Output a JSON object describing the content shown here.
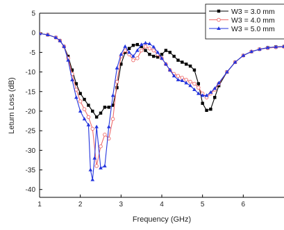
{
  "chart_data": {
    "type": "line",
    "xlabel": "Frequency (GHz)",
    "ylabel": "Leturn Loss (dB)",
    "xlim": [
      1,
      7
    ],
    "ylim": [
      -42,
      5
    ],
    "xticks": [
      1,
      2,
      3,
      4,
      5,
      6
    ],
    "yticks": [
      5,
      0,
      -5,
      -10,
      -15,
      -20,
      -25,
      -30,
      -35,
      -40
    ],
    "legend_position": "top-right",
    "series": [
      {
        "name": "W3 = 3.0 mm",
        "color": "#000000",
        "marker": "square",
        "x": [
          1.0,
          1.2,
          1.4,
          1.5,
          1.6,
          1.7,
          1.8,
          1.9,
          2.0,
          2.1,
          2.2,
          2.3,
          2.4,
          2.5,
          2.6,
          2.7,
          2.8,
          2.9,
          3.0,
          3.1,
          3.2,
          3.3,
          3.4,
          3.5,
          3.6,
          3.7,
          3.8,
          3.9,
          4.0,
          4.1,
          4.2,
          4.3,
          4.4,
          4.5,
          4.6,
          4.7,
          4.8,
          4.9,
          5.0,
          5.1,
          5.2,
          5.3,
          5.4,
          5.6,
          5.8,
          6.0,
          6.2,
          6.4,
          6.6,
          6.8,
          7.0
        ],
        "y": [
          -0.2,
          -0.5,
          -1.2,
          -2.0,
          -3.5,
          -6.0,
          -9.5,
          -13.0,
          -15.5,
          -17.0,
          -18.5,
          -20.0,
          -21.5,
          -20.5,
          -19.0,
          -19.0,
          -18.5,
          -14.0,
          -8.0,
          -5.0,
          -4.0,
          -3.2,
          -3.0,
          -3.5,
          -4.5,
          -5.5,
          -6.0,
          -6.2,
          -5.5,
          -4.5,
          -5.0,
          -6.0,
          -7.0,
          -7.5,
          -8.0,
          -8.5,
          -9.5,
          -13.0,
          -18.0,
          -19.8,
          -19.5,
          -16.5,
          -13.5,
          -10.0,
          -7.5,
          -5.8,
          -4.8,
          -4.2,
          -3.8,
          -3.6,
          -3.5
        ]
      },
      {
        "name": "W3 = 4.0 mm",
        "color": "#ee6a6a",
        "marker": "circle",
        "x": [
          1.0,
          1.2,
          1.4,
          1.5,
          1.6,
          1.7,
          1.8,
          1.9,
          2.0,
          2.1,
          2.2,
          2.3,
          2.4,
          2.5,
          2.6,
          2.7,
          2.8,
          2.9,
          3.0,
          3.1,
          3.2,
          3.3,
          3.4,
          3.5,
          3.6,
          3.7,
          3.8,
          3.9,
          4.0,
          4.1,
          4.2,
          4.3,
          4.4,
          4.5,
          4.6,
          4.7,
          4.8,
          4.9,
          5.0,
          5.1,
          5.2,
          5.3,
          5.4,
          5.6,
          5.8,
          6.0,
          6.2,
          6.4,
          6.6,
          6.8,
          7.0
        ],
        "y": [
          -0.2,
          -0.5,
          -1.2,
          -2.0,
          -3.5,
          -6.5,
          -10.5,
          -14.5,
          -17.5,
          -19.5,
          -21.5,
          -24.5,
          -34.0,
          -29.0,
          -26.0,
          -27.0,
          -22.0,
          -12.5,
          -6.0,
          -4.5,
          -5.5,
          -7.0,
          -6.5,
          -4.5,
          -3.5,
          -4.0,
          -4.5,
          -5.5,
          -6.5,
          -8.0,
          -9.5,
          -10.5,
          -11.0,
          -11.5,
          -12.0,
          -12.5,
          -13.0,
          -14.0,
          -15.5,
          -16.5,
          -15.5,
          -14.5,
          -13.0,
          -10.0,
          -7.5,
          -5.8,
          -4.8,
          -4.2,
          -3.9,
          -3.7,
          -3.6
        ]
      },
      {
        "name": "W3 = 5.0 mm",
        "color": "#2233dd",
        "marker": "triangle",
        "x": [
          1.0,
          1.2,
          1.4,
          1.5,
          1.6,
          1.7,
          1.8,
          1.9,
          2.0,
          2.1,
          2.2,
          2.25,
          2.3,
          2.35,
          2.4,
          2.5,
          2.6,
          2.7,
          2.8,
          2.9,
          3.0,
          3.1,
          3.2,
          3.3,
          3.4,
          3.5,
          3.6,
          3.7,
          3.8,
          3.9,
          4.0,
          4.1,
          4.2,
          4.3,
          4.4,
          4.5,
          4.6,
          4.7,
          4.8,
          4.9,
          5.0,
          5.1,
          5.2,
          5.3,
          5.4,
          5.6,
          5.8,
          6.0,
          6.2,
          6.4,
          6.6,
          6.8,
          7.0
        ],
        "y": [
          -0.2,
          -0.5,
          -1.2,
          -2.0,
          -3.5,
          -7.0,
          -12.0,
          -16.5,
          -20.0,
          -22.0,
          -23.5,
          -35.0,
          -37.5,
          -32.0,
          -24.0,
          -34.5,
          -34.0,
          -24.0,
          -16.0,
          -9.0,
          -5.5,
          -3.5,
          -5.0,
          -6.0,
          -4.5,
          -3.0,
          -2.6,
          -2.8,
          -3.6,
          -5.0,
          -6.5,
          -8.0,
          -9.5,
          -11.0,
          -12.0,
          -12.2,
          -12.8,
          -13.5,
          -14.5,
          -15.5,
          -16.0,
          -16.0,
          -15.2,
          -14.2,
          -12.8,
          -10.0,
          -7.5,
          -5.8,
          -4.8,
          -4.2,
          -3.8,
          -3.6,
          -3.5
        ]
      }
    ]
  }
}
